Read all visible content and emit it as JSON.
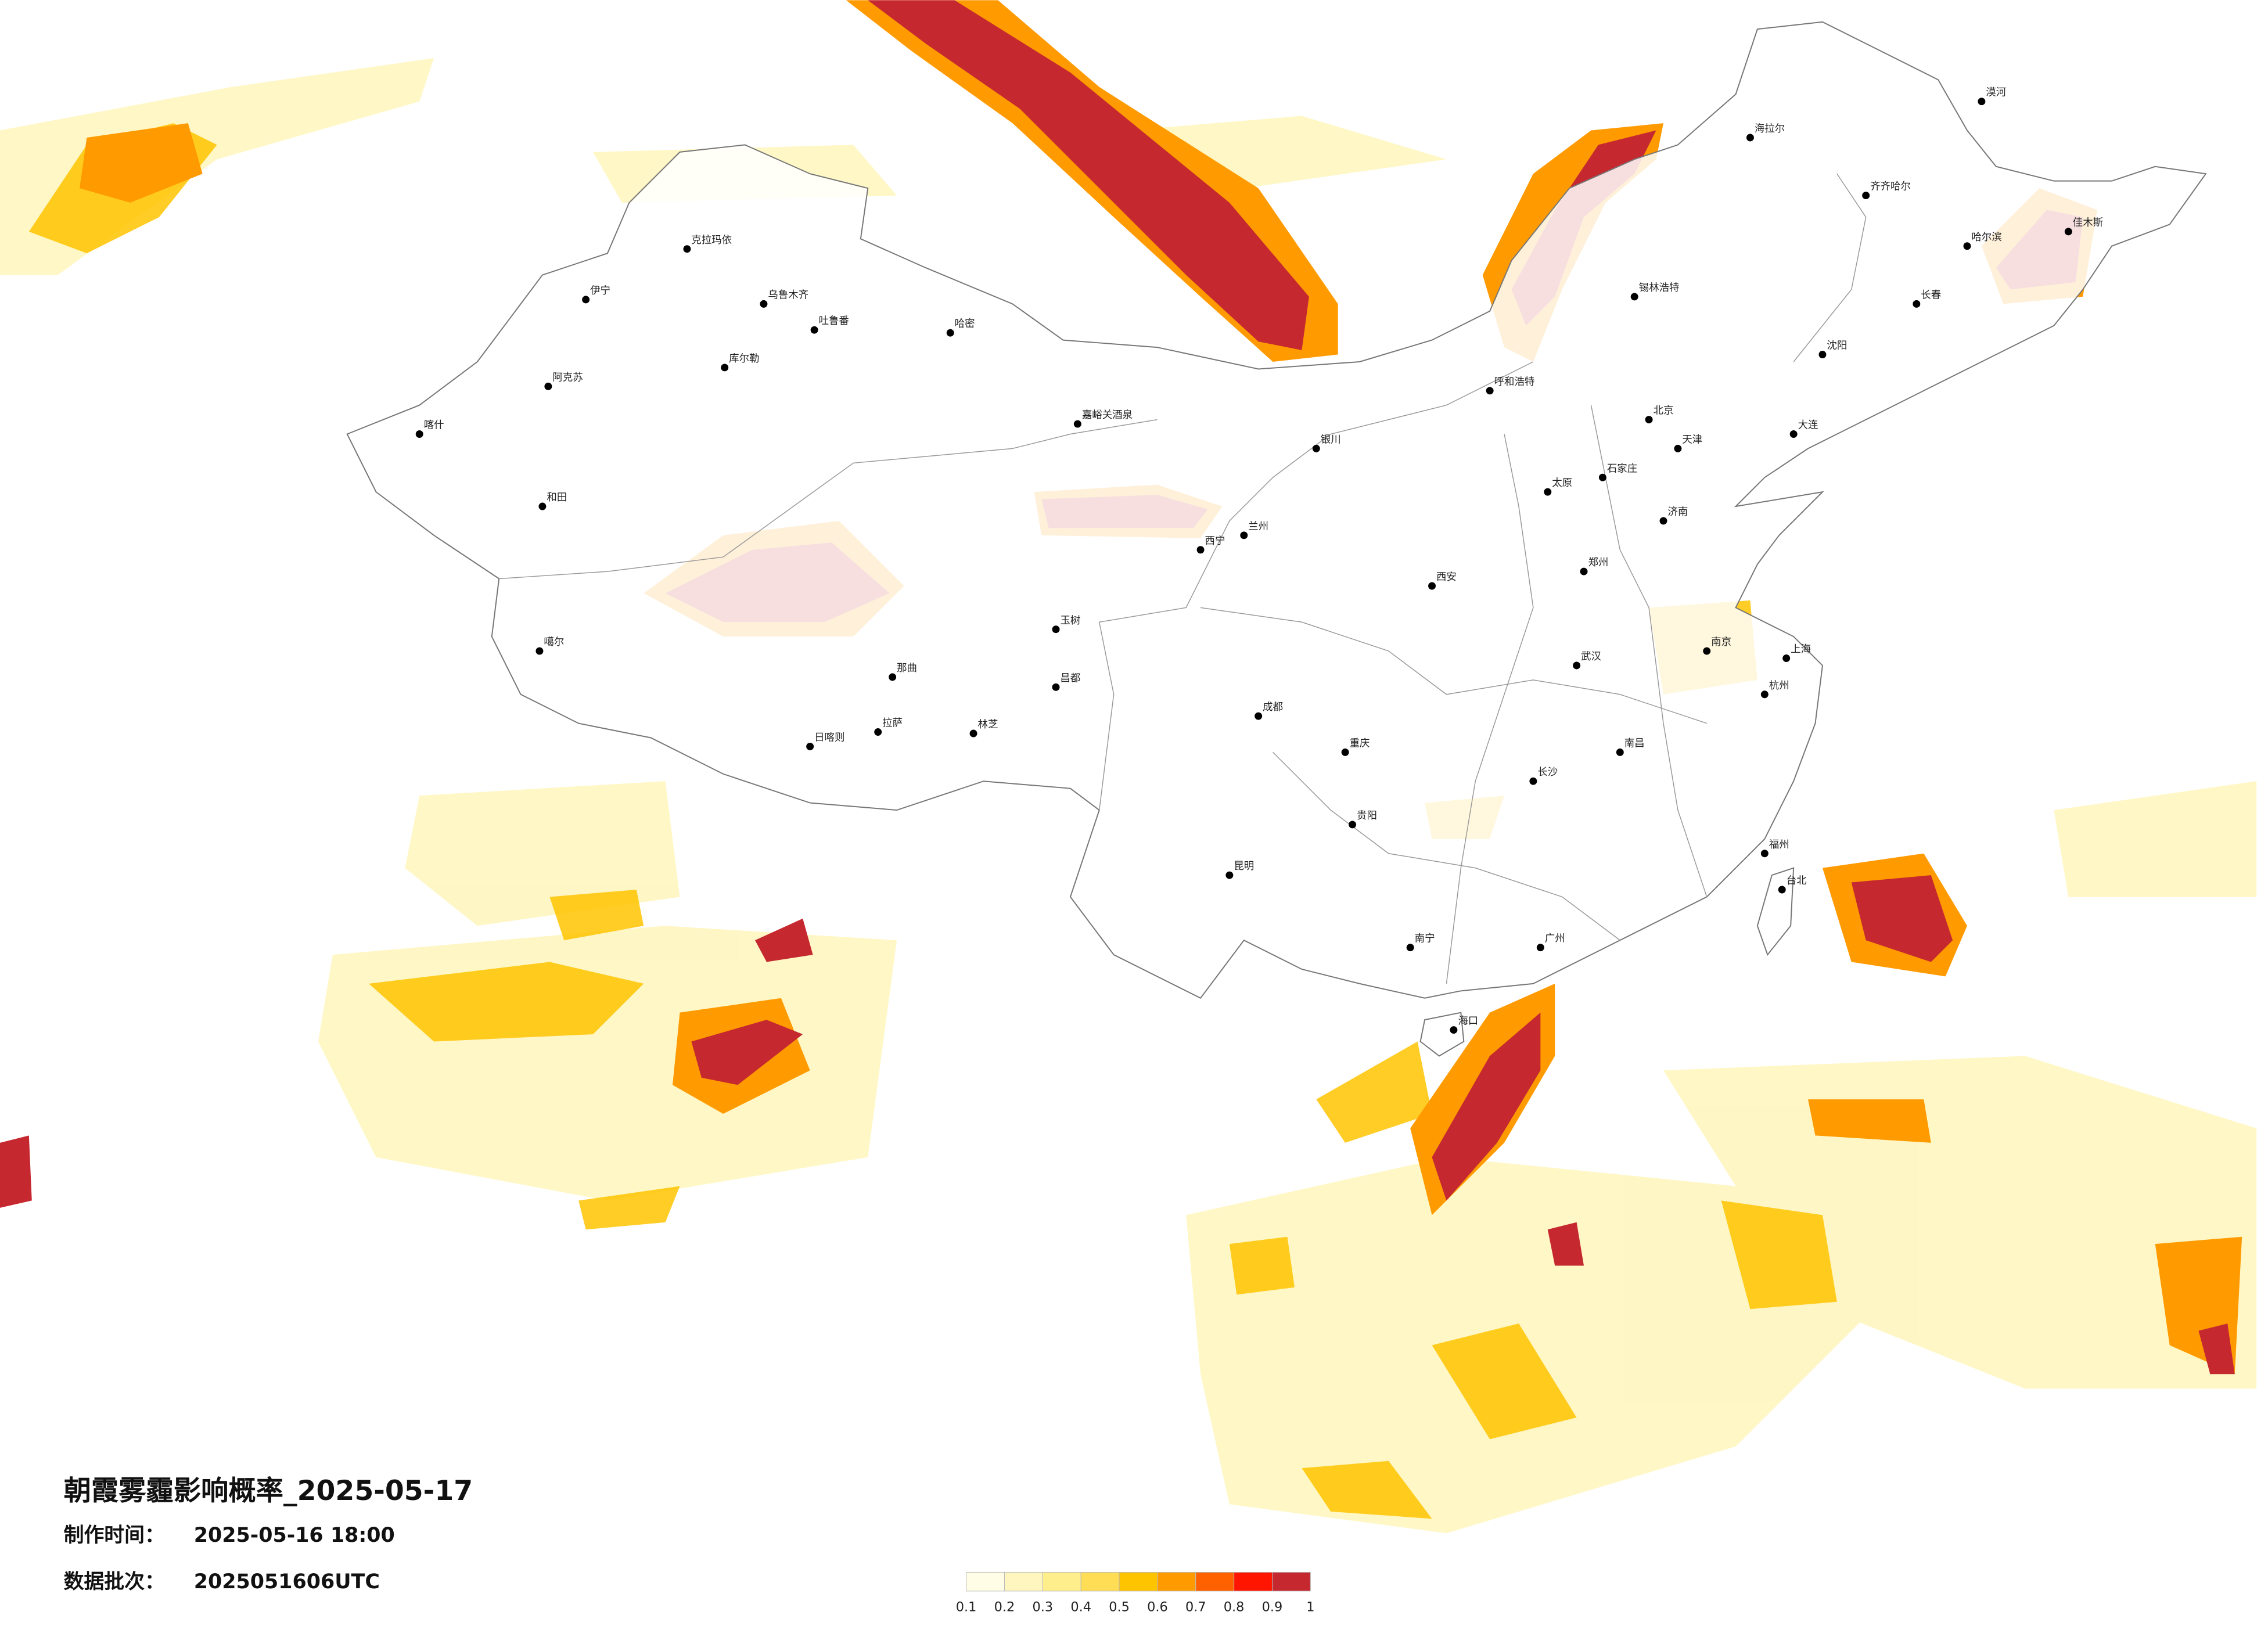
{
  "title": "朝霞雾霾影响概率_2025-05-17",
  "info": [
    {
      "label": "制作时间：",
      "value": "2025-05-16 18:00"
    },
    {
      "label": "数据批次：",
      "value": "2025051606UTC"
    }
  ],
  "legend": {
    "ticks": [
      0.1,
      0.2,
      0.3,
      0.4,
      0.5,
      0.6,
      0.7,
      0.8,
      0.9,
      1
    ],
    "colors": [
      "#fffde6",
      "#fff6bf",
      "#ffee8c",
      "#ffdd55",
      "#ffc400",
      "#ff9a00",
      "#ff6000",
      "#ff1500",
      "#c5282f"
    ]
  },
  "cities": [
    {
      "name": "伊宁"
    },
    {
      "name": "克拉玛依"
    },
    {
      "name": "乌鲁木齐"
    },
    {
      "name": "吐鲁番"
    },
    {
      "name": "哈密"
    },
    {
      "name": "库尔勒"
    },
    {
      "name": "阿克苏"
    },
    {
      "name": "喀什"
    },
    {
      "name": "和田"
    },
    {
      "name": "噶尔"
    },
    {
      "name": "那曲"
    },
    {
      "name": "日喀则"
    },
    {
      "name": "拉萨"
    },
    {
      "name": "林芝"
    },
    {
      "name": "玉树"
    },
    {
      "name": "昌都"
    },
    {
      "name": "嘉峪关酒泉"
    },
    {
      "name": "西宁"
    },
    {
      "name": "兰州"
    },
    {
      "name": "银川"
    },
    {
      "name": "呼和浩特"
    },
    {
      "name": "北京"
    },
    {
      "name": "天津"
    },
    {
      "name": "石家庄"
    },
    {
      "name": "太原"
    },
    {
      "name": "济南"
    },
    {
      "name": "郑州"
    },
    {
      "name": "西安"
    },
    {
      "name": "武汉"
    },
    {
      "name": "南京"
    },
    {
      "name": "上海"
    },
    {
      "name": "杭州"
    },
    {
      "name": "长沙"
    },
    {
      "name": "南昌"
    },
    {
      "name": "福州"
    },
    {
      "name": "广州"
    },
    {
      "name": "南宁"
    },
    {
      "name": "贵阳"
    },
    {
      "name": "昆明"
    },
    {
      "name": "成都"
    },
    {
      "name": "重庆"
    },
    {
      "name": "哈尔滨"
    },
    {
      "name": "长春"
    },
    {
      "name": "沈阳"
    },
    {
      "name": "大连"
    },
    {
      "name": "海拉尔"
    },
    {
      "name": "齐齐哈尔"
    },
    {
      "name": "海口"
    },
    {
      "name": "台北"
    },
    {
      "name": "漠河"
    },
    {
      "name": "佳木斯"
    },
    {
      "name": "锡林浩特"
    }
  ]
}
